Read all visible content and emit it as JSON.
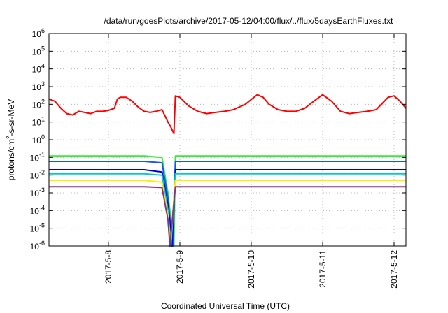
{
  "chart_data": {
    "type": "line",
    "title": "/data/run/goesPlots/archive/2017-05-12/04:00/flux/../flux/5daysEarthFluxes.txt",
    "xlabel": "Coordinated Universal Time (UTC)",
    "ylabel_prefix": "protons/cm",
    "ylabel_sup": "2",
    "ylabel_suffix": "-s-sr-MeV",
    "x_scale": "time (days)",
    "xlim": [
      "2017-05-07T04:00",
      "2017-05-12T04:00"
    ],
    "x_ticks": [
      "2017-5-8",
      "2017-5-9",
      "2017-5-10",
      "2017-5-11",
      "2017-5-12"
    ],
    "y_scale": "log",
    "ylim": [
      1e-06,
      1000000.0
    ],
    "y_ticks": [
      {
        "base": "10",
        "exp": "-6",
        "value": 1e-06
      },
      {
        "base": "10",
        "exp": "-5",
        "value": 1e-05
      },
      {
        "base": "10",
        "exp": "-4",
        "value": 0.0001
      },
      {
        "base": "10",
        "exp": "-3",
        "value": 0.001
      },
      {
        "base": "10",
        "exp": "-2",
        "value": 0.01
      },
      {
        "base": "10",
        "exp": "-1",
        "value": 0.1
      },
      {
        "base": "10",
        "exp": "0",
        "value": 1
      },
      {
        "base": "10",
        "exp": "1",
        "value": 10
      },
      {
        "base": "10",
        "exp": "2",
        "value": 100
      },
      {
        "base": "10",
        "exp": "3",
        "value": 1000
      },
      {
        "base": "10",
        "exp": "4",
        "value": 10000
      },
      {
        "base": "10",
        "exp": "5",
        "value": 100000
      },
      {
        "base": "10",
        "exp": "6",
        "value": 1000000
      }
    ],
    "grid": true,
    "legend": "none",
    "series": [
      {
        "color": "#ff0000",
        "points": [
          [
            "2017-05-07T04:00",
            200
          ],
          [
            "2017-05-07T06:00",
            150
          ],
          [
            "2017-05-07T08:00",
            60
          ],
          [
            "2017-05-07T10:00",
            30
          ],
          [
            "2017-05-07T12:00",
            25
          ],
          [
            "2017-05-07T14:00",
            40
          ],
          [
            "2017-05-07T16:00",
            35
          ],
          [
            "2017-05-07T18:00",
            30
          ],
          [
            "2017-05-07T20:00",
            40
          ],
          [
            "2017-05-07T22:00",
            40
          ],
          [
            "2017-05-08T00:00",
            45
          ],
          [
            "2017-05-08T02:00",
            60
          ],
          [
            "2017-05-08T03:00",
            200
          ],
          [
            "2017-05-08T04:00",
            250
          ],
          [
            "2017-05-08T06:00",
            250
          ],
          [
            "2017-05-08T08:00",
            150
          ],
          [
            "2017-05-08T10:00",
            70
          ],
          [
            "2017-05-08T12:00",
            40
          ],
          [
            "2017-05-08T14:00",
            35
          ],
          [
            "2017-05-08T16:00",
            40
          ],
          [
            "2017-05-08T18:00",
            50
          ],
          [
            "2017-05-08T20:00",
            10
          ],
          [
            "2017-05-08T21:00",
            5
          ],
          [
            "2017-05-08T22:00",
            2.2
          ],
          [
            "2017-05-08T22:30",
            300
          ],
          [
            "2017-05-09T00:00",
            250
          ],
          [
            "2017-05-09T03:00",
            80
          ],
          [
            "2017-05-09T06:00",
            40
          ],
          [
            "2017-05-09T09:00",
            30
          ],
          [
            "2017-05-09T12:00",
            35
          ],
          [
            "2017-05-09T15:00",
            40
          ],
          [
            "2017-05-09T18:00",
            50
          ],
          [
            "2017-05-09T22:00",
            100
          ],
          [
            "2017-05-10T02:00",
            350
          ],
          [
            "2017-05-10T04:00",
            250
          ],
          [
            "2017-05-10T06:00",
            100
          ],
          [
            "2017-05-10T09:00",
            50
          ],
          [
            "2017-05-10T12:00",
            40
          ],
          [
            "2017-05-10T15:00",
            40
          ],
          [
            "2017-05-10T18:00",
            60
          ],
          [
            "2017-05-10T21:00",
            150
          ],
          [
            "2017-05-11T00:00",
            350
          ],
          [
            "2017-05-11T03:00",
            150
          ],
          [
            "2017-05-11T06:00",
            40
          ],
          [
            "2017-05-11T09:00",
            30
          ],
          [
            "2017-05-11T12:00",
            35
          ],
          [
            "2017-05-11T15:00",
            40
          ],
          [
            "2017-05-11T18:00",
            50
          ],
          [
            "2017-05-11T22:00",
            250
          ],
          [
            "2017-05-12T00:00",
            300
          ],
          [
            "2017-05-12T02:00",
            150
          ],
          [
            "2017-05-12T04:00",
            60
          ]
        ]
      },
      {
        "color": "#33ee33",
        "points": [
          [
            "2017-05-07T04:00",
            0.12
          ],
          [
            "2017-05-08T12:00",
            0.12
          ],
          [
            "2017-05-08T18:00",
            0.1
          ],
          [
            "2017-05-08T20:00",
            0.001
          ],
          [
            "2017-05-08T21:00",
            3e-05
          ],
          [
            "2017-05-08T22:00",
            1e-06
          ],
          [
            "2017-05-08T22:30",
            0.12
          ],
          [
            "2017-05-12T04:00",
            0.12
          ]
        ]
      },
      {
        "color": "#1155ff",
        "points": [
          [
            "2017-05-07T04:00",
            0.06
          ],
          [
            "2017-05-08T12:00",
            0.06
          ],
          [
            "2017-05-08T18:00",
            0.05
          ],
          [
            "2017-05-08T20:00",
            0.0005
          ],
          [
            "2017-05-08T21:00",
            1e-05
          ],
          [
            "2017-05-08T21:40",
            1e-06
          ],
          [
            "2017-05-08T22:30",
            0.06
          ],
          [
            "2017-05-12T04:00",
            0.06
          ]
        ]
      },
      {
        "color": "#0000cc",
        "points": [
          [
            "2017-05-07T04:00",
            0.02
          ],
          [
            "2017-05-08T12:00",
            0.02
          ],
          [
            "2017-05-08T18:00",
            0.015
          ],
          [
            "2017-05-08T20:00",
            0.0002
          ],
          [
            "2017-05-08T21:00",
            5e-06
          ],
          [
            "2017-05-08T21:20",
            1e-06
          ],
          [
            "2017-05-08T22:30",
            0.02
          ],
          [
            "2017-05-12T04:00",
            0.02
          ]
        ]
      },
      {
        "color": "#00cccc",
        "points": [
          [
            "2017-05-07T04:00",
            0.012
          ],
          [
            "2017-05-08T12:00",
            0.012
          ],
          [
            "2017-05-08T18:00",
            0.01
          ],
          [
            "2017-05-08T20:00",
            0.0001
          ],
          [
            "2017-05-08T21:00",
            1e-06
          ],
          [
            "2017-05-08T22:30",
            0.012
          ],
          [
            "2017-05-12T04:00",
            0.012
          ]
        ]
      },
      {
        "color": "#ffee00",
        "points": [
          [
            "2017-05-07T04:00",
            0.005
          ],
          [
            "2017-05-08T12:00",
            0.005
          ],
          [
            "2017-05-08T18:00",
            0.004
          ],
          [
            "2017-05-08T20:00",
            5e-05
          ],
          [
            "2017-05-08T20:50",
            1e-06
          ],
          [
            "2017-05-08T22:30",
            0.005
          ],
          [
            "2017-05-12T04:00",
            0.005
          ]
        ]
      },
      {
        "color": "#883388",
        "points": [
          [
            "2017-05-07T04:00",
            0.0022
          ],
          [
            "2017-05-08T12:00",
            0.0022
          ],
          [
            "2017-05-08T18:00",
            0.002
          ],
          [
            "2017-05-08T20:00",
            3e-05
          ],
          [
            "2017-05-08T20:40",
            1e-06
          ],
          [
            "2017-05-08T22:30",
            0.0022
          ],
          [
            "2017-05-12T04:00",
            0.0022
          ]
        ]
      }
    ]
  }
}
